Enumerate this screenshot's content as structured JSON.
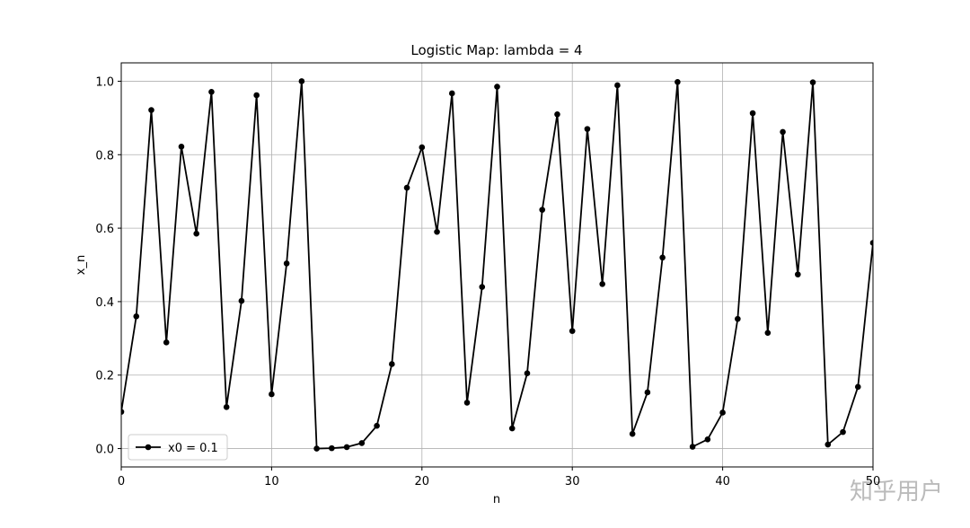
{
  "chart_data": {
    "type": "line",
    "title": "Logistic Map: lambda = 4",
    "x_label": "n",
    "y_label": "x_n",
    "x": [
      0,
      1,
      2,
      3,
      4,
      5,
      6,
      7,
      8,
      9,
      10,
      11,
      12,
      13,
      14,
      15,
      16,
      17,
      18,
      19,
      20,
      21,
      22,
      23,
      24,
      25,
      26,
      27,
      28,
      29,
      30,
      31,
      32,
      33,
      34,
      35,
      36,
      37,
      38,
      39,
      40,
      41,
      42,
      43,
      44,
      45,
      46,
      47,
      48,
      49,
      50
    ],
    "series": [
      {
        "name": "x0 = 0.1",
        "color": "#000000",
        "values": [
          0.1,
          0.36,
          0.9216,
          0.289,
          0.822,
          0.585,
          0.971,
          0.113,
          0.402,
          0.962,
          0.148,
          0.504,
          1.0,
          0.0,
          0.001,
          0.004,
          0.015,
          0.062,
          0.23,
          0.71,
          0.82,
          0.59,
          0.967,
          0.125,
          0.44,
          0.985,
          0.055,
          0.205,
          0.65,
          0.91,
          0.32,
          0.87,
          0.448,
          0.989,
          0.04,
          0.153,
          0.52,
          0.998,
          0.005,
          0.025,
          0.098,
          0.353,
          0.913,
          0.315,
          0.862,
          0.474,
          0.997,
          0.011,
          0.045,
          0.168,
          0.56
        ]
      }
    ],
    "xlim": [
      0,
      50
    ],
    "xticks": [
      0,
      10,
      20,
      30,
      40,
      50
    ],
    "ylim": [
      -0.05,
      1.05
    ],
    "yticks": [
      {
        "value": 0,
        "label": "0.0"
      },
      0.2,
      0.4,
      0.6,
      0.8,
      {
        "value": 1,
        "label": "1.0"
      }
    ],
    "grid": true,
    "legend": "lower left",
    "watermark": "知乎用户"
  }
}
